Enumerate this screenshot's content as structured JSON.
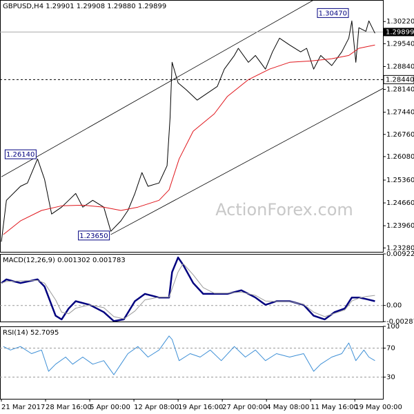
{
  "chart_data": [
    {
      "type": "line",
      "title": "GBPUSD,H4 1.29901 1.29908 1.29880 1.29899",
      "watermark": "ActionForex.com",
      "xlim": [
        0,
        380
      ],
      "ylim": [
        1.2316,
        1.3088
      ],
      "yticks": [
        {
          "value": 1.3022,
          "label": "1.30220"
        },
        {
          "value": 1.2954,
          "label": "1.29540"
        },
        {
          "value": 1.2884,
          "label": "1.28840"
        },
        {
          "value": 1.2814,
          "label": "1.28140"
        },
        {
          "value": 1.2744,
          "label": "1.27440"
        },
        {
          "value": 1.2676,
          "label": "1.26760"
        },
        {
          "value": 1.2608,
          "label": "1.26080"
        },
        {
          "value": 1.2536,
          "label": "1.25360"
        },
        {
          "value": 1.2466,
          "label": "1.24660"
        },
        {
          "value": 1.2396,
          "label": "1.23960"
        },
        {
          "value": 1.2328,
          "label": "1.23280"
        }
      ],
      "series": [
        {
          "color": "#000000",
          "width": 1,
          "x": [
            0,
            5,
            19,
            26,
            36,
            43,
            50,
            60,
            67,
            74,
            81,
            91,
            102,
            109,
            119,
            126,
            133,
            140,
            146,
            157,
            165,
            168,
            170,
            176,
            184,
            195,
            205,
            215,
            222,
            232,
            236,
            246,
            253,
            263,
            270,
            277,
            287,
            298,
            304,
            311,
            318,
            329,
            339,
            346,
            349,
            353,
            356,
            363,
            366,
            372
          ],
          "values": [
            1.2347,
            1.2474,
            1.2517,
            1.2527,
            1.2601,
            1.2538,
            1.2432,
            1.2453,
            1.2474,
            1.2495,
            1.2453,
            1.2474,
            1.2453,
            1.2379,
            1.2411,
            1.2443,
            1.2495,
            1.2559,
            1.2517,
            1.2527,
            1.258,
            1.2728,
            1.2897,
            1.2834,
            1.2813,
            1.2781,
            1.2802,
            1.2823,
            1.2876,
            1.2918,
            1.294,
            1.2897,
            1.2918,
            1.2876,
            1.2929,
            1.2971,
            1.295,
            1.2929,
            1.294,
            1.2876,
            1.2918,
            1.2887,
            1.2929,
            1.2971,
            1.3024,
            1.2897,
            1.3003,
            1.2992,
            1.3024,
            1.2986
          ]
        },
        {
          "color": "#e0151b",
          "width": 1,
          "x": [
            2,
            19,
            40,
            60,
            81,
            102,
            119,
            136,
            157,
            167,
            177,
            191,
            212,
            225,
            246,
            267,
            287,
            308,
            329,
            346,
            356,
            372
          ],
          "values": [
            1.2369,
            1.2411,
            1.2443,
            1.2457,
            1.2459,
            1.2453,
            1.2443,
            1.2453,
            1.2474,
            1.2506,
            1.2601,
            1.2686,
            1.2739,
            1.2792,
            1.2844,
            1.2876,
            1.2897,
            1.2901,
            1.2908,
            1.2918,
            1.294,
            1.295
          ]
        }
      ],
      "channels": [
        {
          "x": [
            0,
            311
          ],
          "y": [
            1.2546,
            1.3088
          ]
        },
        {
          "x": [
            109,
            380
          ],
          "y": [
            1.2369,
            1.2817
          ]
        }
      ],
      "annotations": [
        {
          "x": 347,
          "y": 1.3047,
          "label": "1.30470"
        },
        {
          "x": 36,
          "y": 1.2614,
          "label": "1.26140"
        },
        {
          "x": 109,
          "y": 1.2365,
          "label": "1.23650"
        }
      ],
      "last_price": {
        "value": 1.29899,
        "label": "1.29899"
      },
      "level_line": {
        "value": 1.2844,
        "label": "1.28440"
      }
    },
    {
      "type": "line",
      "title": "MACD(12,26,9) 0.001302 0.001783",
      "xlim": [
        0,
        380
      ],
      "ylim": [
        -0.002879,
        0.009227
      ],
      "yticks": [
        0.009227,
        {
          "value": 0,
          "label": "0.00"
        },
        -0.002879
      ],
      "levels": [
        0
      ],
      "series": [
        {
          "color": "#00007f",
          "width": 2.5,
          "x": [
            0,
            5,
            19,
            36,
            43,
            54,
            60,
            67,
            74,
            88,
            102,
            112,
            122,
            133,
            143,
            157,
            167,
            170,
            176,
            181,
            191,
            201,
            212,
            225,
            239,
            253,
            263,
            274,
            287,
            301,
            311,
            322,
            332,
            342,
            349,
            356,
            363,
            372
          ],
          "values": [
            0.00402,
            0.00467,
            0.00402,
            0.00467,
            0.00337,
            -0.00184,
            -0.00249,
            -0.00054,
            0.00076,
            0.00011,
            -0.00119,
            -0.0028,
            -0.00249,
            0.00076,
            0.00207,
            0.00142,
            0.00142,
            0.00597,
            0.00858,
            0.00727,
            0.00402,
            0.00207,
            0.00207,
            0.00207,
            0.00272,
            0.00142,
            0.00011,
            0.00076,
            0.00076,
            0.00011,
            -0.00184,
            -0.00249,
            -0.00119,
            -0.00054,
            0.00142,
            0.00142,
            0.00116,
            0.00076
          ]
        },
        {
          "color": "#9a9a9a",
          "width": 1,
          "x": [
            0,
            5,
            19,
            36,
            43,
            54,
            60,
            67,
            74,
            88,
            102,
            112,
            122,
            133,
            143,
            157,
            167,
            170,
            176,
            181,
            191,
            201,
            212,
            225,
            239,
            253,
            263,
            274,
            287,
            301,
            311,
            322,
            332,
            342,
            349,
            356,
            363,
            372
          ],
          "values": [
            0.004,
            0.0043,
            0.0044,
            0.0045,
            0.004,
            0.001,
            -0.0012,
            -0.0015,
            -0.0005,
            0.0001,
            -0.0004,
            -0.002,
            -0.0024,
            -0.001,
            0.001,
            0.0015,
            0.0015,
            0.003,
            0.006,
            0.0075,
            0.0055,
            0.0032,
            0.0022,
            0.0022,
            0.0024,
            0.0018,
            0.0008,
            0.0007,
            0.0007,
            0.0002,
            -0.0012,
            -0.002,
            -0.0014,
            -0.0008,
            0.0008,
            0.0013,
            0.0016,
            0.0018
          ]
        }
      ]
    },
    {
      "type": "line",
      "title": "RSI(14) 52.7095",
      "xlim": [
        0,
        380
      ],
      "ylim": [
        0,
        100
      ],
      "yticks": [
        100,
        70,
        30
      ],
      "levels": [
        70,
        30
      ],
      "xticks": [
        {
          "value": 0,
          "label": "21 Mar 2017"
        },
        {
          "value": 44,
          "label": "28 Mar 16:00"
        },
        {
          "value": 88,
          "label": "5 Apr 00:00"
        },
        {
          "value": 132,
          "label": "12 Apr 08:00"
        },
        {
          "value": 176,
          "label": "19 Apr 16:00"
        },
        {
          "value": 220,
          "label": "27 Apr 00:00"
        },
        {
          "value": 264,
          "label": "4 May 08:00"
        },
        {
          "value": 308,
          "label": "11 May 16:00"
        },
        {
          "value": 352,
          "label": "19 May 00:00"
        }
      ],
      "series": [
        {
          "color": "#3d8fd6",
          "width": 1,
          "x": [
            2,
            9,
            19,
            30,
            40,
            47,
            54,
            64,
            71,
            81,
            91,
            102,
            112,
            119,
            126,
            136,
            146,
            157,
            167,
            170,
            177,
            188,
            198,
            208,
            219,
            232,
            243,
            253,
            263,
            274,
            287,
            301,
            311,
            318,
            329,
            339,
            346,
            353,
            361,
            366,
            372
          ],
          "values": [
            72.2,
            67.3,
            72.2,
            62.4,
            67.3,
            38.0,
            47.8,
            57.6,
            47.8,
            57.6,
            47.8,
            52.7,
            33.2,
            47.8,
            62.4,
            72.2,
            57.6,
            67.3,
            86.8,
            82.0,
            52.7,
            62.4,
            57.6,
            67.3,
            52.7,
            72.2,
            57.6,
            67.3,
            52.7,
            62.4,
            57.6,
            62.4,
            38.0,
            47.8,
            57.6,
            62.4,
            77.1,
            52.7,
            67.3,
            57.6,
            52.7
          ]
        }
      ]
    }
  ]
}
